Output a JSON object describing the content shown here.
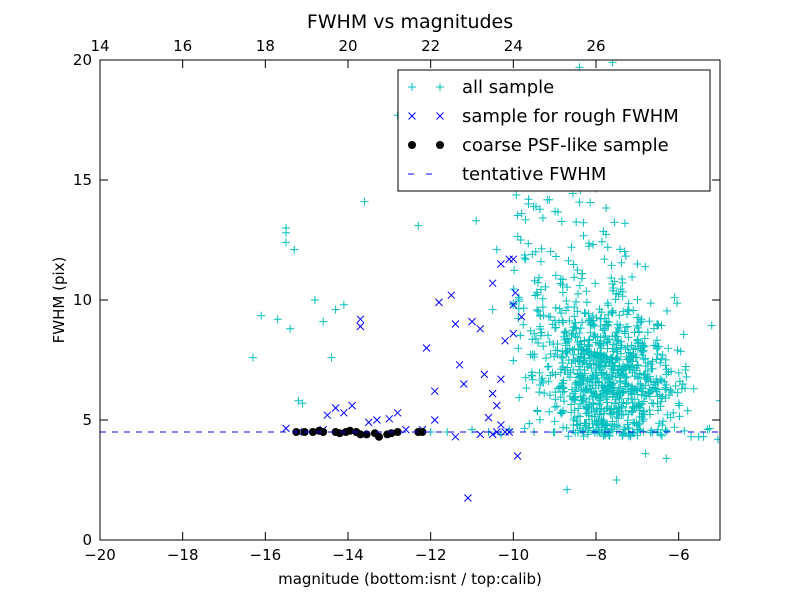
{
  "chart_data": {
    "type": "scatter",
    "title": "FWHM vs magnitudes",
    "xlabel": "magnitude (bottom:isnt / top:calib)",
    "ylabel": "FWHM (pix)",
    "xlim": [
      -20,
      -5
    ],
    "ylim": [
      0,
      20
    ],
    "x_ticks": [
      -20,
      -18,
      -16,
      -14,
      -12,
      -10,
      -8,
      -6
    ],
    "x_tick_labels": [
      "−20",
      "−18",
      "−16",
      "−14",
      "−12",
      "−10",
      "−8",
      "−6"
    ],
    "y_ticks": [
      0,
      5,
      10,
      15,
      20
    ],
    "y_tick_labels": [
      "0",
      "5",
      "10",
      "15",
      "20"
    ],
    "top_axis": {
      "ticks": [
        14,
        16,
        18,
        20,
        22,
        24,
        26
      ],
      "tick_labels": [
        "14",
        "16",
        "18",
        "20",
        "22",
        "24",
        "26"
      ],
      "calib_offset": 34
    },
    "grid": false,
    "legend_position": "top-right",
    "series": [
      {
        "name": "all sample",
        "marker": "+",
        "color": "#00bfbf",
        "points": [
          [
            -16.3,
            7.6
          ],
          [
            -16.1,
            9.35
          ],
          [
            -15.7,
            9.2
          ],
          [
            -15.5,
            13.0
          ],
          [
            -15.5,
            12.8
          ],
          [
            -15.5,
            12.4
          ],
          [
            -15.4,
            8.8
          ],
          [
            -15.3,
            12.1
          ],
          [
            -15.2,
            5.8
          ],
          [
            -15.1,
            5.7
          ],
          [
            -14.8,
            10.0
          ],
          [
            -14.6,
            9.1
          ],
          [
            -14.4,
            7.6
          ],
          [
            -14.3,
            9.6
          ],
          [
            -14.1,
            9.8
          ],
          [
            -13.6,
            14.1
          ],
          [
            -12.3,
            13.1
          ],
          [
            -12.0,
            4.5
          ],
          [
            -11.6,
            4.5
          ],
          [
            -11.0,
            4.6
          ],
          [
            -10.6,
            4.5
          ],
          [
            -10.3,
            4.4
          ],
          [
            -10.1,
            4.6
          ],
          [
            -9.5,
            4.5
          ],
          [
            -9.0,
            4.5
          ],
          [
            -8.7,
            2.1
          ],
          [
            -8.2,
            4.4
          ],
          [
            -7.7,
            4.5
          ],
          [
            -7.5,
            2.5
          ],
          [
            -7.0,
            4.5
          ],
          [
            -6.5,
            4.6
          ],
          [
            -6.1,
            4.7
          ],
          [
            -5.7,
            4.3
          ],
          [
            -5.3,
            4.6
          ],
          [
            -5.05,
            4.2
          ],
          [
            -6.8,
            3.6
          ],
          [
            -6.3,
            3.4
          ],
          [
            -5.4,
            4.3
          ],
          [
            -6.1,
            10.1
          ],
          [
            -6.6,
            8.1
          ],
          [
            -6.9,
            9.2
          ],
          [
            -7.0,
            11.5
          ],
          [
            -6.5,
            5.4
          ],
          [
            -6.3,
            6.9
          ],
          [
            -5.9,
            6.5
          ],
          [
            -5.0,
            5.8
          ],
          [
            -12.8,
            17.7
          ],
          [
            -10.9,
            13.3
          ],
          [
            -10.2,
            15.4
          ],
          [
            -9.8,
            13.6
          ],
          [
            -9.3,
            16.7
          ],
          [
            -8.6,
            14.8
          ],
          [
            -8.2,
            17.5
          ],
          [
            -7.8,
            15.6
          ],
          [
            -7.5,
            14.9
          ],
          [
            -7.3,
            13.2
          ],
          [
            -8.4,
            19.7
          ],
          [
            -7.6,
            19.9
          ],
          [
            -7.3,
            19.4
          ],
          [
            -9.6,
            18.6
          ],
          [
            -9.0,
            16.0
          ],
          [
            -10.4,
            12.1
          ],
          [
            -9.7,
            11.7
          ],
          [
            -10.0,
            9.8
          ],
          [
            -10.5,
            9.6
          ]
        ],
        "cluster": {
          "note": "dense cloud of several hundred points",
          "x_range": [
            -10.0,
            -5.2
          ],
          "y_range": [
            3.8,
            16.0
          ],
          "center": [
            -7.9,
            6.6
          ]
        }
      },
      {
        "name": "sample for rough FWHM",
        "marker": "x",
        "color": "#0000ff",
        "points": [
          [
            -15.5,
            4.65
          ],
          [
            -15.2,
            4.5
          ],
          [
            -14.6,
            4.6
          ],
          [
            -14.5,
            5.2
          ],
          [
            -14.3,
            5.5
          ],
          [
            -14.1,
            5.3
          ],
          [
            -13.9,
            5.6
          ],
          [
            -13.7,
            9.2
          ],
          [
            -13.7,
            8.9
          ],
          [
            -13.5,
            4.9
          ],
          [
            -13.3,
            5.0
          ],
          [
            -13.0,
            5.05
          ],
          [
            -12.8,
            5.3
          ],
          [
            -12.6,
            4.6
          ],
          [
            -12.1,
            8.0
          ],
          [
            -11.9,
            6.2
          ],
          [
            -11.9,
            5.0
          ],
          [
            -11.8,
            9.9
          ],
          [
            -11.5,
            10.2
          ],
          [
            -11.4,
            9.0
          ],
          [
            -11.3,
            7.3
          ],
          [
            -11.2,
            6.5
          ],
          [
            -11.0,
            9.1
          ],
          [
            -10.8,
            8.8
          ],
          [
            -10.7,
            6.9
          ],
          [
            -10.6,
            5.1
          ],
          [
            -10.5,
            4.4
          ],
          [
            -10.4,
            5.6
          ],
          [
            -10.4,
            4.5
          ],
          [
            -10.3,
            6.7
          ],
          [
            -10.3,
            4.8
          ],
          [
            -10.2,
            4.5
          ],
          [
            -10.1,
            11.7
          ],
          [
            -10.1,
            4.5
          ],
          [
            -10.0,
            9.8
          ],
          [
            -10.0,
            8.6
          ],
          [
            -9.9,
            3.5
          ],
          [
            -11.1,
            1.75
          ],
          [
            -10.5,
            10.7
          ],
          [
            -10.3,
            11.5
          ],
          [
            -10.0,
            11.7
          ],
          [
            -10.5,
            6.1
          ],
          [
            -9.95,
            10.3
          ],
          [
            -10.2,
            8.3
          ],
          [
            -9.8,
            9.3
          ],
          [
            -10.8,
            4.4
          ],
          [
            -11.4,
            4.3
          ],
          [
            -12.2,
            4.6
          ]
        ]
      },
      {
        "name": "coarse PSF-like sample",
        "marker": "o",
        "color": "#000000",
        "points": [
          [
            -15.25,
            4.5
          ],
          [
            -15.05,
            4.5
          ],
          [
            -14.85,
            4.5
          ],
          [
            -14.7,
            4.55
          ],
          [
            -14.6,
            4.5
          ],
          [
            -14.3,
            4.5
          ],
          [
            -14.2,
            4.45
          ],
          [
            -14.05,
            4.5
          ],
          [
            -13.95,
            4.55
          ],
          [
            -13.8,
            4.5
          ],
          [
            -13.7,
            4.4
          ],
          [
            -13.55,
            4.4
          ],
          [
            -13.35,
            4.45
          ],
          [
            -13.25,
            4.3
          ],
          [
            -13.05,
            4.4
          ],
          [
            -12.95,
            4.45
          ],
          [
            -12.8,
            4.5
          ],
          [
            -12.3,
            4.5
          ],
          [
            -12.2,
            4.5
          ]
        ]
      },
      {
        "name": "tentative FWHM",
        "marker": "dashed-line",
        "color": "#0000ff",
        "y": 4.5
      }
    ]
  }
}
